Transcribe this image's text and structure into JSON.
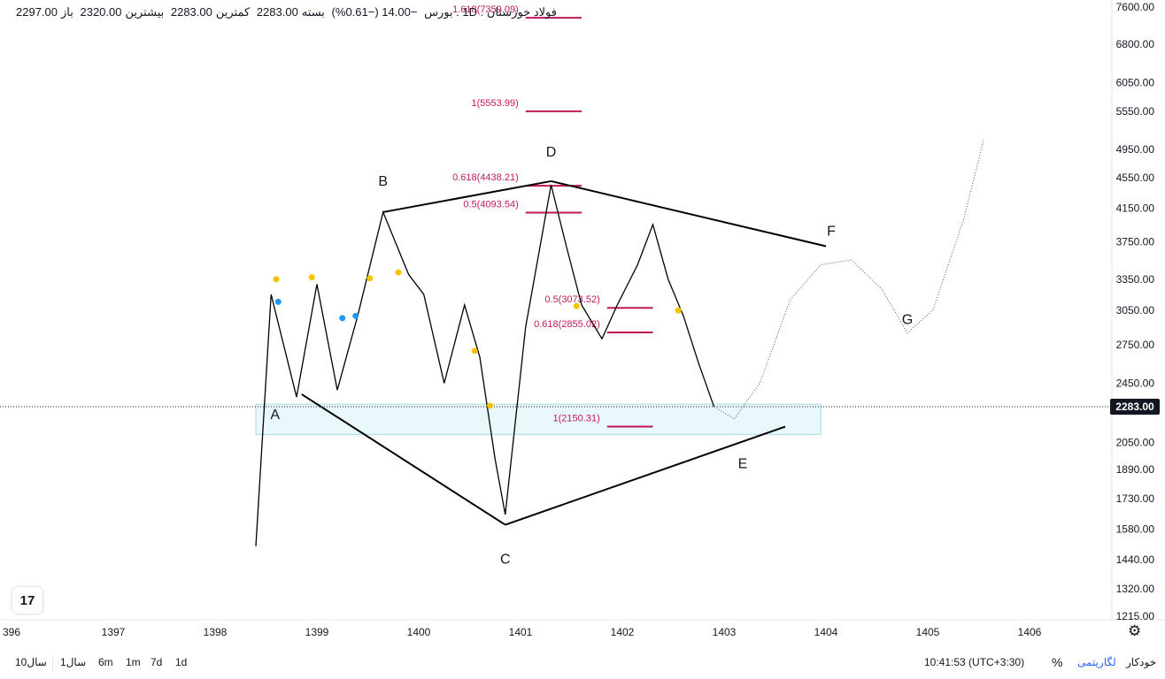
{
  "legend": {
    "symbol": "فولاد خوزستان . 1D . بورس",
    "change": "−14.00 (−0.61%)",
    "close_label": "بسته",
    "close": "2283.00",
    "low_label": "کمترین",
    "low": "2283.00",
    "high_label": "بیشترین",
    "high": "2320.00",
    "open_label": "باز",
    "open": "2297.00"
  },
  "colors": {
    "price_line": "#000000",
    "fib": "#c2185b",
    "zone_fill": "#e9f8fb",
    "zone_border": "#a7dbe3",
    "marker_yellow": "#f5c400",
    "marker_blue": "#2196f3",
    "last_price_bg": "#131722"
  },
  "chart_data": {
    "type": "line",
    "title": "",
    "ylabel": "",
    "xlabel": "",
    "y_scale": "log",
    "ylim": [
      1215,
      7600
    ],
    "y_ticks": [
      "7600.00",
      "6800.00",
      "6050.00",
      "5550.00",
      "4950.00",
      "4550.00",
      "4150.00",
      "3750.00",
      "3350.00",
      "3050.00",
      "2750.00",
      "2450.00",
      "2050.00",
      "1890.00",
      "1730.00",
      "1580.00",
      "1440.00",
      "1320.00",
      "1215.00"
    ],
    "x_ticks": [
      "396",
      "1397",
      "1398",
      "1399",
      "1400",
      "1401",
      "1402",
      "1403",
      "1404",
      "1405",
      "1406"
    ],
    "last_price": "2283.00",
    "series": [
      {
        "x": [
          1398.4,
          1398.55,
          1398.8,
          1399.0,
          1399.2,
          1399.4,
          1399.65,
          1399.9,
          1400.05,
          1400.25,
          1400.45,
          1400.6,
          1400.75,
          1400.85,
          1401.05,
          1401.3,
          1401.45,
          1401.6,
          1401.8,
          1401.95,
          1402.15,
          1402.3,
          1402.45,
          1402.6,
          1402.75,
          1402.9
        ],
        "y": [
          1500,
          3200,
          2350,
          3300,
          2400,
          3000,
          4100,
          3400,
          3200,
          2450,
          3100,
          2650,
          1950,
          1650,
          2900,
          4450,
          3700,
          3100,
          2800,
          3100,
          3500,
          3950,
          3350,
          3000,
          2600,
          2283
        ]
      }
    ],
    "projection": {
      "x": [
        1402.9,
        1403.1,
        1403.35,
        1403.65,
        1403.95,
        1404.25,
        1404.55,
        1404.8,
        1405.05,
        1405.35,
        1405.55
      ],
      "y": [
        2283,
        2200,
        2450,
        3150,
        3500,
        3550,
        3250,
        2850,
        3050,
        4000,
        5100
      ]
    },
    "pattern_labels": [
      "A",
      "B",
      "C",
      "D",
      "E",
      "F",
      "G"
    ],
    "pattern_points": [
      {
        "label": "A",
        "x": 1398.85,
        "y": 2370
      },
      {
        "label": "B",
        "x": 1399.65,
        "y": 4100
      },
      {
        "label": "C",
        "x": 1400.85,
        "y": 1600
      },
      {
        "label": "D",
        "x": 1401.3,
        "y": 4500
      },
      {
        "label": "E",
        "x": 1403.6,
        "y": 2150
      },
      {
        "label": "F",
        "x": 1404.0,
        "y": 3700
      },
      {
        "label": "G",
        "x": 1404.8,
        "y": 2850
      }
    ],
    "fib_levels": [
      {
        "label": "1.618(7359.09)",
        "value": 7359.09,
        "x_from": 1401.05,
        "x_to": 1401.6
      },
      {
        "label": "1(5553.99)",
        "value": 5553.99,
        "x_from": 1401.05,
        "x_to": 1401.6
      },
      {
        "label": "0.618(4438.21)",
        "value": 4438.21,
        "x_from": 1401.05,
        "x_to": 1401.6
      },
      {
        "label": "0.5(4093.54)",
        "value": 4093.54,
        "x_from": 1401.05,
        "x_to": 1401.6
      },
      {
        "label": "0.5(3073.52)",
        "value": 3073.52,
        "x_from": 1401.85,
        "x_to": 1402.3
      },
      {
        "label": "0.618(2855.02)",
        "value": 2855.02,
        "x_from": 1401.85,
        "x_to": 1402.3
      },
      {
        "label": "1(2150.31)",
        "value": 2150.31,
        "x_from": 1401.85,
        "x_to": 1402.3
      }
    ],
    "support_zone": {
      "x_from": 1398.4,
      "x_to": 1403.95,
      "y_from": 2100,
      "y_to": 2300
    },
    "markers": [
      {
        "color": "yellow",
        "x": 1398.6,
        "y": 3350
      },
      {
        "color": "blue",
        "x": 1398.62,
        "y": 3130
      },
      {
        "color": "yellow",
        "x": 1398.95,
        "y": 3370
      },
      {
        "color": "blue",
        "x": 1399.25,
        "y": 2980
      },
      {
        "color": "blue",
        "x": 1399.38,
        "y": 3000
      },
      {
        "color": "yellow",
        "x": 1399.52,
        "y": 3360
      },
      {
        "color": "yellow",
        "x": 1399.8,
        "y": 3420
      },
      {
        "color": "yellow",
        "x": 1400.55,
        "y": 2700
      },
      {
        "color": "yellow",
        "x": 1400.7,
        "y": 2290
      },
      {
        "color": "yellow",
        "x": 1401.55,
        "y": 3090
      },
      {
        "color": "yellow",
        "x": 1402.55,
        "y": 3050
      }
    ]
  },
  "bottom": {
    "timeframes": [
      "1d",
      "7d",
      "1m",
      "6m",
      "1سال",
      "10سال"
    ],
    "clock": "10:41:53 (UTC+3:30)",
    "percent": "%",
    "log": "لگاریتمی",
    "auto": "خودکار"
  },
  "logo_text": "17"
}
